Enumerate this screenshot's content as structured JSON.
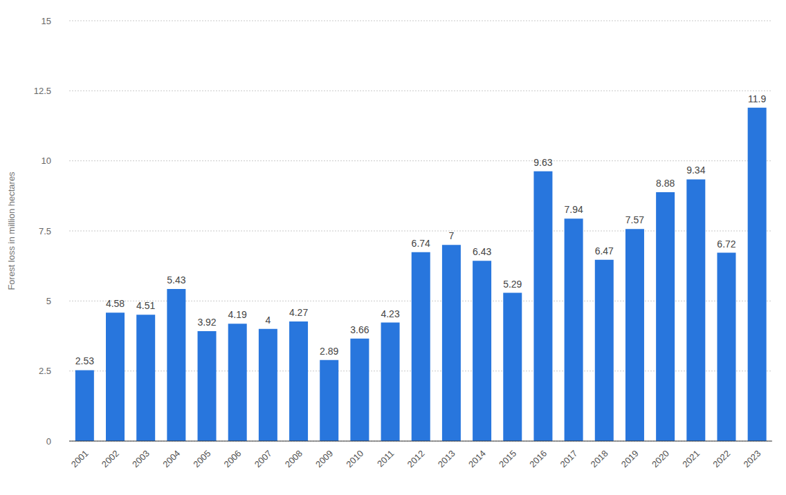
{
  "chart_data": {
    "type": "bar",
    "y_label": "Forest loss in million hectares",
    "categories": [
      "2001",
      "2002",
      "2003",
      "2004",
      "2005",
      "2006",
      "2007",
      "2008",
      "2009",
      "2010",
      "2011",
      "2012",
      "2013",
      "2014",
      "2015",
      "2016",
      "2017",
      "2018",
      "2019",
      "2020",
      "2021",
      "2022",
      "2023"
    ],
    "values": [
      2.53,
      4.58,
      4.51,
      5.43,
      3.92,
      4.19,
      4,
      4.27,
      2.89,
      3.66,
      4.23,
      6.74,
      7,
      6.43,
      5.29,
      9.63,
      7.94,
      6.47,
      7.57,
      8.88,
      9.34,
      6.72,
      11.9
    ],
    "color": "#2876dd",
    "ylim": [
      0,
      15
    ],
    "yticks": [
      0,
      2.5,
      5,
      7.5,
      10,
      12.5,
      15
    ],
    "grid": true,
    "data_labels": true
  }
}
